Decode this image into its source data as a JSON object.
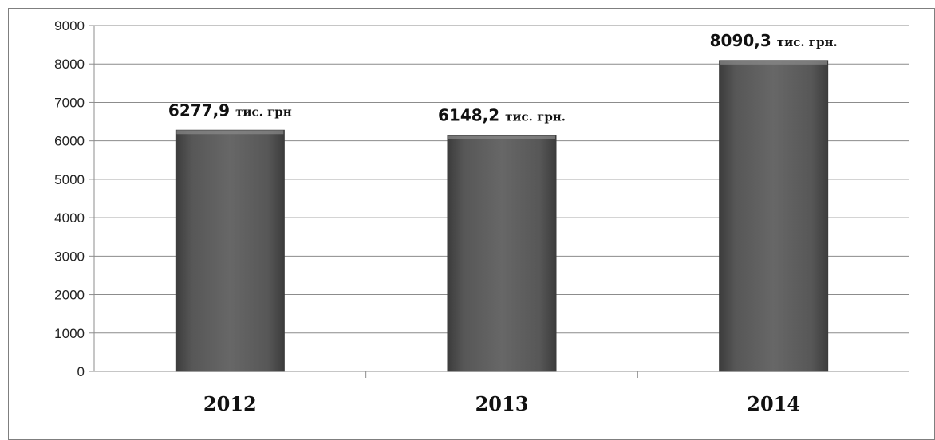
{
  "chart_data": {
    "type": "bar",
    "categories": [
      "2012",
      "2013",
      "2014"
    ],
    "values": [
      6277.9,
      6148.2,
      8090.3
    ],
    "data_labels": [
      {
        "number": "6277,9",
        "unit": "тис. грн"
      },
      {
        "number": "6148,2",
        "unit": "тис. грн."
      },
      {
        "number": "8090,3",
        "unit": "тис. грн."
      }
    ],
    "yticks": [
      "0",
      "1000",
      "2000",
      "3000",
      "4000",
      "5000",
      "6000",
      "7000",
      "8000",
      "9000"
    ],
    "ylim": [
      0,
      9000
    ],
    "grid": true,
    "legend": "none",
    "bar_color": "#5e5e5e"
  }
}
